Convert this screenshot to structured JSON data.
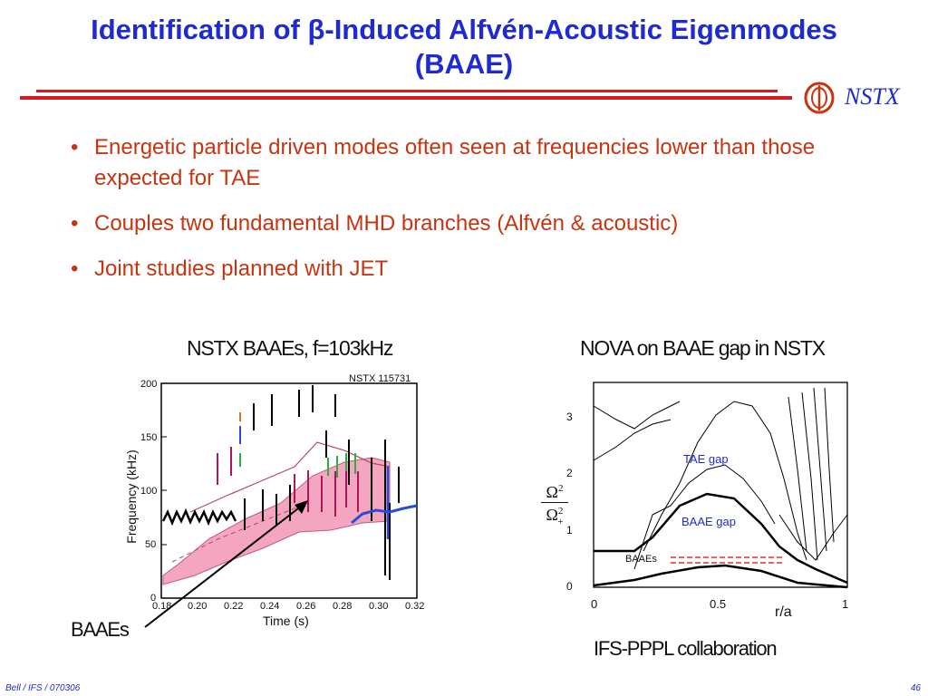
{
  "slide": {
    "title_line1": "Identification of β-Induced Alfvén-Acoustic Eigenmodes",
    "title_line2": "(BAAE)",
    "logo_text": "NSTX",
    "bullets": [
      "Energetic particle driven modes often seen at frequencies lower than those expected for TAE",
      "Couples two fundamental MHD branches (Alfvén & acoustic)",
      "Joint studies planned with JET"
    ],
    "footer_left": "Bell / IFS / 070306",
    "page_number": "46"
  },
  "left_figure": {
    "title": "NSTX BAAEs, f=103kHz",
    "shot_label": "NSTX 115731",
    "ylabel": "Frequency (kHz)",
    "xlabel": "Time (s)",
    "annotation": "BAAEs",
    "x_ticks": [
      "0.18",
      "0.20",
      "0.22",
      "0.24",
      "0.26",
      "0.28",
      "0.30",
      "0.32"
    ],
    "y_ticks": [
      "0",
      "50",
      "100",
      "150",
      "200"
    ]
  },
  "right_figure": {
    "title": "NOVA on BAAE gap in NSTX",
    "xlabel": "r/a",
    "tae_gap_label": "TAE gap",
    "baae_gap_label": "BAAE gap",
    "baaes_label": "BAAEs",
    "x_ticks": [
      "0",
      "0.5",
      "1"
    ],
    "y_ticks": [
      "0",
      "1",
      "2",
      "3"
    ],
    "y_num": "Ω",
    "y_num_sup": "2",
    "y_den": "Ω",
    "y_den_sup": "2",
    "y_den_sub": "+",
    "caption": "IFS-PPPL collaboration"
  },
  "colors": {
    "title": "#1f2bd1",
    "bullet_text": "#c8340f",
    "rule": "#d41a1a",
    "band_fill": "#f4a6c0"
  }
}
